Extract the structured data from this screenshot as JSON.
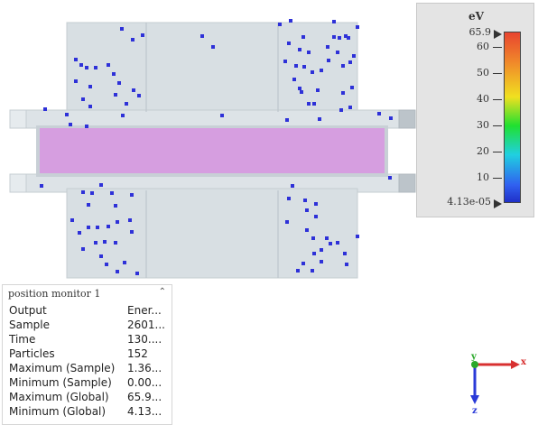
{
  "colorbar": {
    "unit": "eV",
    "max_label": "65.9",
    "min_label": "4.13e-05",
    "ticks": [
      "60",
      "50",
      "40",
      "30",
      "20",
      "10"
    ]
  },
  "info_panel": {
    "title": "position  monitor 1",
    "rows": [
      {
        "key": "Output",
        "value": "Ener..."
      },
      {
        "key": "Sample",
        "value": "2601..."
      },
      {
        "key": "Time",
        "value": "130...."
      },
      {
        "key": "Particles",
        "value": "152"
      },
      {
        "key": "Maximum (Sample)",
        "value": "1.36..."
      },
      {
        "key": "Minimum (Sample)",
        "value": "0.00..."
      },
      {
        "key": "Maximum (Global)",
        "value": "65.9..."
      },
      {
        "key": "Minimum (Global)",
        "value": "4.13..."
      }
    ]
  },
  "axes": {
    "x_label": "x",
    "y_label": "y",
    "z_label": "z"
  },
  "colors": {
    "structure": "#d8dfe3",
    "particle": "#2e31d8",
    "beam": "#d69ee0"
  }
}
